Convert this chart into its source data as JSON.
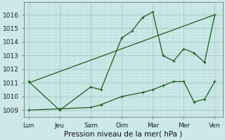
{
  "xlabel": "Pression niveau de la mer( hPa )",
  "bg_color": "#cce8e8",
  "grid_color_major": "#aacccc",
  "grid_color_minor": "#bbdddd",
  "line_color": "#1a5c1a",
  "ylim": [
    1008.5,
    1016.8
  ],
  "yticks": [
    1009,
    1010,
    1011,
    1012,
    1013,
    1014,
    1015,
    1016
  ],
  "x_tick_labels": [
    "Lun",
    "Jeu",
    "Sam",
    "Dim",
    "Mar",
    "Mer",
    "Ven"
  ],
  "x_tick_pos": [
    0,
    1,
    2,
    3,
    4,
    5,
    6
  ],
  "series1_x": [
    0,
    1,
    2,
    2.33,
    3,
    3.33,
    3.67,
    4,
    4.33,
    4.67,
    5,
    5.33,
    5.67,
    6
  ],
  "series1_y": [
    1011.1,
    1009.0,
    1010.7,
    1010.5,
    1014.3,
    1014.8,
    1015.8,
    1016.2,
    1013.0,
    1012.6,
    1013.5,
    1013.2,
    1012.5,
    1016.0
  ],
  "series2_x": [
    0,
    6
  ],
  "series2_y": [
    1011.0,
    1016.0
  ],
  "series3_x": [
    0,
    1,
    2,
    2.33,
    3,
    3.67,
    4,
    4.33,
    4.67,
    5,
    5.33,
    5.67,
    6
  ],
  "series3_y": [
    1009.0,
    1009.1,
    1009.2,
    1009.4,
    1010.0,
    1010.3,
    1010.5,
    1010.8,
    1011.1,
    1011.1,
    1009.6,
    1009.8,
    1011.1
  ]
}
